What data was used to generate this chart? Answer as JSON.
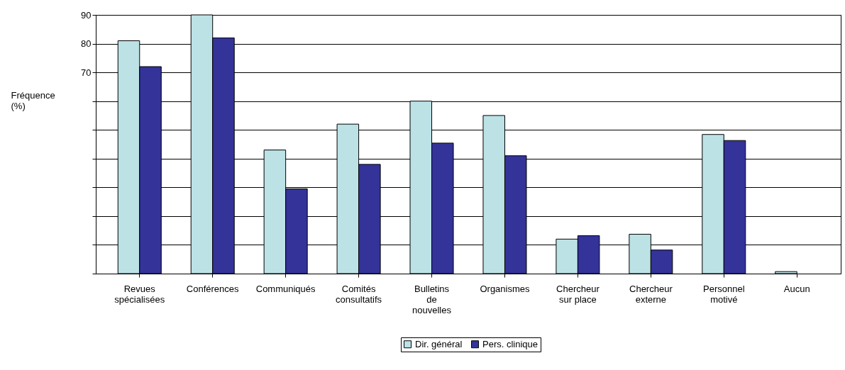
{
  "chart_data": {
    "type": "bar",
    "ylabel": "Fréquence (%)",
    "categories": [
      "Revues\nspécialisées",
      "Conférences",
      "Communiqués",
      "Comités\nconsultatifs",
      "Bulletins\nde\nnouvelles",
      "Organismes",
      "Chercheur\nsur place",
      "Chercheur\nexterne",
      "Personnel\nmotivé",
      "Aucun"
    ],
    "series": [
      {
        "name": "Dir. général",
        "color": "#bce2e6",
        "values": [
          81,
          90,
          43,
          52,
          60,
          55,
          12,
          13.7,
          48.4,
          0.7
        ]
      },
      {
        "name": "Pers. clinique",
        "color": "#333399",
        "values": [
          72,
          82,
          29.5,
          38,
          45.4,
          41,
          13.2,
          8.2,
          46.3,
          0
        ]
      }
    ],
    "ylim": [
      0,
      90
    ],
    "yticks": [
      {
        "value": 0,
        "label": null
      },
      {
        "value": 10,
        "label": null
      },
      {
        "value": 20,
        "label": null
      },
      {
        "value": 30,
        "label": null
      },
      {
        "value": 40,
        "label": null
      },
      {
        "value": 50,
        "label": null
      },
      {
        "value": 60,
        "label": null
      },
      70,
      80,
      90
    ],
    "grid": "y",
    "legend": "bottom"
  }
}
